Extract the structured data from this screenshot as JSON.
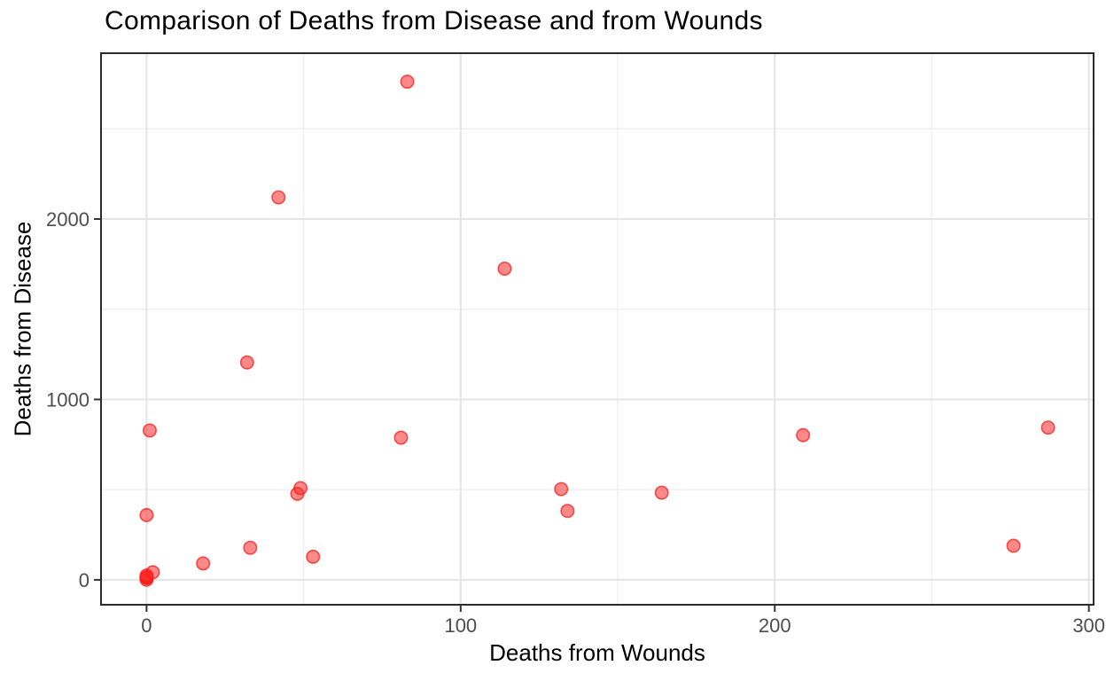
{
  "theme": {
    "background": "#FFFFFF",
    "panel_background": "#FFFFFF",
    "panel_border": "#2B2B2B",
    "grid_major": "#E4E4E4",
    "grid_minor": "#EFEFEF",
    "tick_color": "#333333",
    "tick_label_color": "#4D4D4D",
    "text_color": "#000000"
  },
  "chart_data": {
    "type": "scatter",
    "title": "Comparison of Deaths from Disease and from Wounds",
    "xlabel": "Deaths from Wounds",
    "ylabel": "Deaths from Disease",
    "grid": "on",
    "legend": "none",
    "x_ticks": [
      0,
      100,
      200,
      300
    ],
    "y_ticks": [
      0,
      1000,
      2000
    ],
    "x_minor_ticks": [
      50,
      150,
      250
    ],
    "y_minor_ticks": [
      500,
      1500,
      2500
    ],
    "xlim": [
      -14.5,
      301.5
    ],
    "ylim": [
      -138,
      2919
    ],
    "point_style": {
      "color": "#FF2828",
      "fill_opacity": 0.55,
      "stroke_color": "#F01E1E",
      "stroke_opacity": 0.75,
      "radius": 7.2
    },
    "points": [
      [
        0,
        1
      ],
      [
        0,
        11
      ],
      [
        0,
        12
      ],
      [
        0,
        15
      ],
      [
        0,
        24
      ],
      [
        0,
        359
      ],
      [
        1,
        828
      ],
      [
        2,
        42
      ],
      [
        18,
        91
      ],
      [
        32,
        1205
      ],
      [
        33,
        178
      ],
      [
        42,
        2120
      ],
      [
        48,
        477
      ],
      [
        49,
        508
      ],
      [
        53,
        128
      ],
      [
        81,
        788
      ],
      [
        83,
        2761
      ],
      [
        114,
        1725
      ],
      [
        132,
        503
      ],
      [
        134,
        382
      ],
      [
        164,
        483
      ],
      [
        209,
        802
      ],
      [
        276,
        189
      ],
      [
        287,
        844
      ]
    ]
  }
}
